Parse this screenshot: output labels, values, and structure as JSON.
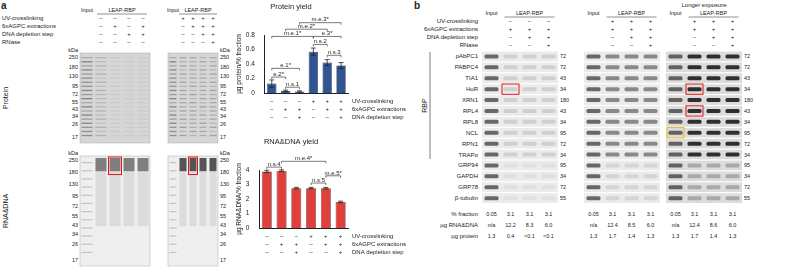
{
  "panel_labels": [
    "a",
    "b"
  ],
  "gel": {
    "input_label": "Input",
    "leap_label": "LEAP-RBP",
    "row_labels": [
      "UV-crosslinking",
      "6xAGPC extractions",
      "DNA depletion step",
      "RNase"
    ],
    "blocks": [
      {
        "conditions": [
          [
            null,
            "–",
            "–",
            "–",
            "–"
          ],
          [
            null,
            "–",
            "+",
            "–",
            "+"
          ],
          [
            null,
            "–",
            "–",
            "+",
            "+"
          ],
          [
            null,
            "–",
            "–",
            "–",
            "–"
          ]
        ]
      },
      {
        "conditions": [
          [
            null,
            "+",
            "+",
            "+",
            "+"
          ],
          [
            null,
            "–",
            "+",
            "+",
            "+"
          ],
          [
            null,
            "–",
            "–",
            "+",
            "+"
          ],
          [
            null,
            "–",
            "–",
            "–",
            "+"
          ]
        ]
      }
    ],
    "panels": [
      "Protein",
      "RNA&DNA"
    ],
    "unit": "kDa",
    "markers": [
      250,
      180,
      130,
      95,
      72,
      55,
      43,
      34,
      26,
      17
    ]
  },
  "chart_data": [
    {
      "type": "bar",
      "title": "Protein yield",
      "y_label": "µg protein/% fraction",
      "categories": [
        null,
        null,
        null,
        null,
        null,
        null
      ],
      "values": [
        0.13,
        0.03,
        0.02,
        0.57,
        0.42,
        0.38
      ],
      "errors": [
        0.05,
        0.01,
        0.01,
        0.05,
        0.04,
        0.04
      ],
      "color": "#2f5597",
      "ylim": [
        0,
        0.8
      ],
      "yticks": [
        0,
        0.2,
        0.4,
        0.6,
        0.8
      ],
      "grid": false,
      "annotations": [
        {
          "label": "e.2*",
          "from": 0,
          "to": 1,
          "y": 0.22
        },
        {
          "label": "n.s.1",
          "from": 1,
          "to": 2,
          "y": 0.08
        },
        {
          "label": "e.1*",
          "from": 0,
          "to": 2,
          "y": 0.34
        },
        {
          "label": "n.s.3",
          "from": 4,
          "to": 5,
          "y": 0.52
        },
        {
          "label": "n.s.2",
          "from": 3,
          "to": 4,
          "y": 0.67
        },
        {
          "label": "m.e.1*",
          "from": 0,
          "to": 3,
          "y": 0.78
        },
        {
          "label": "e.3*",
          "from": 3,
          "to": 5,
          "y": 0.78
        },
        {
          "label": "m.e.2*",
          "from": 1,
          "to": 4,
          "y": 0.88
        },
        {
          "label": "m.e.3*",
          "from": 2,
          "to": 5,
          "y": 0.97
        }
      ],
      "conditions": [
        {
          "name": "UV-crosslinking",
          "values": [
            "–",
            "–",
            "–",
            "+",
            "+",
            "+"
          ]
        },
        {
          "name": "6xAGPC extractions",
          "values": [
            "–",
            "+",
            "+",
            "–",
            "+",
            "+"
          ]
        },
        {
          "name": "DNA depletion step",
          "values": [
            "–",
            "–",
            "+",
            "–",
            "–",
            "+"
          ]
        }
      ]
    },
    {
      "type": "bar",
      "title": "RNA&DNA yield",
      "y_label": "µg RNA&DNA/% fraction",
      "categories": [
        null,
        null,
        null,
        null,
        null,
        null
      ],
      "values": [
        3.9,
        3.95,
        2.75,
        2.75,
        2.75,
        1.8
      ],
      "errors": [
        0.08,
        0.06,
        0.05,
        0.05,
        0.05,
        0.05
      ],
      "color": "#e0403a",
      "ylim": [
        0,
        4
      ],
      "yticks": [
        0,
        1,
        2,
        3,
        4
      ],
      "grid": false,
      "annotations": [
        {
          "label": "n.s.4",
          "from": 0,
          "to": 1,
          "y": 4.2
        },
        {
          "label": "m.e.4*",
          "from": 1,
          "to": 4,
          "y": 4.6
        },
        {
          "label": "n.s.5",
          "from": 3,
          "to": 4,
          "y": 3.1
        },
        {
          "label": "m.e.5*",
          "from": 4,
          "to": 5,
          "y": 3.6
        }
      ],
      "conditions": [
        {
          "name": "UV-crosslinking",
          "values": [
            "–",
            "–",
            "–",
            "+",
            "+",
            "+"
          ]
        },
        {
          "name": "6xAGPC extractions",
          "values": [
            "–",
            "+",
            "+",
            "–",
            "+",
            "+"
          ]
        },
        {
          "name": "DNA depletion step",
          "values": [
            "–",
            "–",
            "+",
            "–",
            "–",
            "+"
          ]
        }
      ]
    }
  ],
  "blot": {
    "input_label": "Input",
    "leap_label": "LEAP-RBP",
    "condition_labels": [
      "UV-crosslinking",
      "6xAGPC extractions",
      "DNA depletion step",
      "RNase"
    ],
    "blocks": [
      {
        "conditions": [
          [
            null,
            "–",
            "–",
            "–"
          ],
          [
            null,
            "+",
            "+",
            "+"
          ],
          [
            null,
            "–",
            "+",
            "+"
          ],
          [
            null,
            "–",
            "–",
            "+"
          ]
        ]
      },
      {
        "conditions": [
          [
            null,
            "+",
            "+",
            "+"
          ],
          [
            null,
            "+",
            "+",
            "+"
          ],
          [
            null,
            "–",
            "+",
            "+"
          ],
          [
            null,
            "–",
            "–",
            "+"
          ]
        ]
      },
      {
        "note": "Longer exposure",
        "conditions": [
          [
            null,
            "+",
            "+",
            "+"
          ],
          [
            null,
            "+",
            "+",
            "+"
          ],
          [
            null,
            "–",
            "+",
            "+"
          ],
          [
            null,
            "–",
            "–",
            "+"
          ]
        ]
      }
    ],
    "rows": [
      {
        "name": "pAbPC1",
        "kDa": 72,
        "group": "RBP"
      },
      {
        "name": "PABPC4",
        "kDa": 72,
        "group": "RBP"
      },
      {
        "name": "TIA1",
        "kDa": 43,
        "group": "RBP"
      },
      {
        "name": "HuR",
        "kDa": 34,
        "group": "RBP"
      },
      {
        "name": "XRN1",
        "kDa": 180,
        "group": "RBP"
      },
      {
        "name": "RPL4",
        "kDa": 43,
        "group": "RBP"
      },
      {
        "name": "RPL8",
        "kDa": 34,
        "group": "RBP"
      },
      {
        "name": "NCL",
        "kDa": 95,
        "group": "RBP"
      },
      {
        "name": "RPN1",
        "kDa": 72,
        "group": "RBP"
      },
      {
        "name": "TRAPα",
        "kDa": 34,
        "group": "RBP"
      },
      {
        "name": "GRP94",
        "kDa": 95
      },
      {
        "name": "GAPDH",
        "kDa": 34
      },
      {
        "name": "GRP78",
        "kDa": 72
      },
      {
        "name": "β-tubulin",
        "kDa": 55
      }
    ],
    "table": {
      "rows": [
        {
          "label": "% fraction",
          "values": [
            "0.05",
            "3.1",
            "3.1",
            "3.1",
            "0.05",
            "3.1",
            "3.1",
            "3.1",
            "0.05",
            "3.1",
            "3.1",
            "3.1"
          ]
        },
        {
          "label": "µg RNA&DNA",
          "values": [
            "n/a",
            "12.2",
            "8.3",
            "6.0",
            "n/a",
            "12.4",
            "8.5",
            "6.0",
            "n/a",
            "12.4",
            "8.6",
            "6.0"
          ]
        },
        {
          "label": "µg protein",
          "values": [
            "1.3",
            "0.4",
            "<0.1",
            "<0.1",
            "1.3",
            "1.7",
            "1.4",
            "1.3",
            "1.3",
            "1.7",
            "1.4",
            "1.3"
          ]
        }
      ]
    }
  }
}
